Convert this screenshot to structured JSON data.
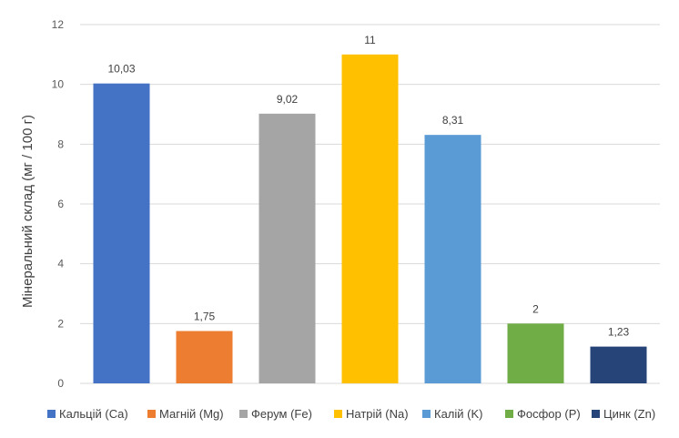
{
  "chart_data": {
    "type": "bar",
    "title": "",
    "xlabel": "",
    "ylabel": "Мінеральний склад (мг / 100 г)",
    "ylim": [
      0,
      12
    ],
    "yticks": [
      "0",
      "2",
      "4",
      "6",
      "8",
      "10",
      "12"
    ],
    "grid": true,
    "legend_position": "bottom",
    "categories": [
      "Кальцій (Ca)",
      "Магній (Mg)",
      "Ферум (Fe)",
      "Натрій (Na)",
      "Калій (K)",
      "Фосфор (P)",
      "Цинк (Zn)"
    ],
    "values": [
      10.03,
      1.75,
      9.02,
      11,
      8.31,
      2,
      1.23
    ],
    "value_labels": [
      "10,03",
      "1,75",
      "9,02",
      "11",
      "8,31",
      "2",
      "1,23"
    ],
    "colors": [
      "#4472c4",
      "#ed7d31",
      "#a5a5a5",
      "#ffc000",
      "#5b9bd5",
      "#70ad47",
      "#264478"
    ]
  }
}
